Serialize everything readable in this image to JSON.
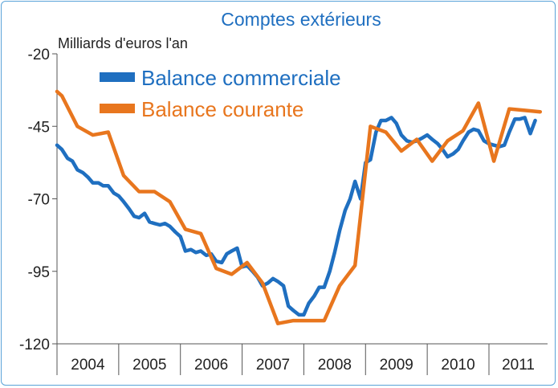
{
  "chart_data": {
    "type": "line",
    "title": "Comptes extérieurs",
    "ylabel": "Milliards d'euros l'an",
    "xlabel": "",
    "ylim": [
      -120,
      -20
    ],
    "yticks": [
      -20,
      -45,
      -70,
      -95,
      -120
    ],
    "xlim": [
      2004.0,
      2011.95
    ],
    "categories": [
      "2004",
      "2005",
      "2006",
      "2007",
      "2008",
      "2009",
      "2010",
      "2011"
    ],
    "grid": false,
    "legend_position": "top-left",
    "colors": {
      "commerciale": "#1f6fc0",
      "courante": "#e8761e",
      "frame": "#5aa3d8",
      "title": "#1f6fc0"
    },
    "series": [
      {
        "name": "Balance commerciale",
        "color": "#1f6fc0",
        "x": [
          2004.0,
          2004.08,
          2004.17,
          2004.25,
          2004.33,
          2004.42,
          2004.5,
          2004.58,
          2004.67,
          2004.75,
          2004.83,
          2004.92,
          2005.0,
          2005.08,
          2005.17,
          2005.25,
          2005.33,
          2005.42,
          2005.5,
          2005.58,
          2005.67,
          2005.75,
          2005.83,
          2005.92,
          2006.0,
          2006.08,
          2006.17,
          2006.25,
          2006.33,
          2006.42,
          2006.5,
          2006.58,
          2006.67,
          2006.75,
          2006.83,
          2006.92,
          2007.0,
          2007.08,
          2007.17,
          2007.25,
          2007.33,
          2007.42,
          2007.5,
          2007.58,
          2007.67,
          2007.75,
          2007.83,
          2007.92,
          2008.0,
          2008.08,
          2008.17,
          2008.25,
          2008.33,
          2008.42,
          2008.5,
          2008.58,
          2008.67,
          2008.75,
          2008.83,
          2008.92,
          2009.0,
          2009.08,
          2009.17,
          2009.25,
          2009.33,
          2009.42,
          2009.5,
          2009.58,
          2009.67,
          2009.75,
          2009.83,
          2009.92,
          2010.0,
          2010.08,
          2010.17,
          2010.25,
          2010.33,
          2010.42,
          2010.5,
          2010.58,
          2010.67,
          2010.75,
          2010.83,
          2010.92,
          2011.0,
          2011.08,
          2011.17,
          2011.25,
          2011.33,
          2011.42,
          2011.5,
          2011.58,
          2011.67,
          2011.75
        ],
        "values": [
          -51.5,
          -53,
          -56,
          -57,
          -60,
          -61,
          -62.5,
          -64.5,
          -64.5,
          -65.5,
          -65.5,
          -68,
          -69,
          -71,
          -73.5,
          -76,
          -76.5,
          -75,
          -78,
          -78.5,
          -79,
          -78.5,
          -79.5,
          -81.5,
          -83,
          -88,
          -87.5,
          -88.5,
          -88,
          -89.5,
          -89,
          -91.5,
          -92,
          -89,
          -88,
          -87,
          -93.5,
          -93,
          -95,
          -97,
          -100,
          -99,
          -97.5,
          -98.5,
          -100,
          -107,
          -108.5,
          -110,
          -110,
          -106,
          -103.5,
          -100.5,
          -100.5,
          -95,
          -88.5,
          -81,
          -74,
          -70,
          -64,
          -70,
          -57.5,
          -56.5,
          -47,
          -43,
          -43,
          -42,
          -44,
          -48,
          -50,
          -50.5,
          -50,
          -49,
          -48,
          -49.5,
          -51,
          -53,
          -55.5,
          -54.5,
          -53,
          -50,
          -47,
          -46,
          -46.5,
          -50,
          -51,
          -51.5,
          -52,
          -51.5,
          -47,
          -42.5,
          -42.5,
          -42,
          -47.5,
          -43
        ]
      },
      {
        "name": "Balance courante",
        "color": "#e8761e",
        "x": [
          2004.0,
          2004.08,
          2004.33,
          2004.58,
          2004.83,
          2005.08,
          2005.33,
          2005.58,
          2005.83,
          2006.08,
          2006.33,
          2006.58,
          2006.83,
          2007.08,
          2007.33,
          2007.58,
          2007.83,
          2008.08,
          2008.33,
          2008.58,
          2008.83,
          2009.08,
          2009.33,
          2009.58,
          2009.83,
          2010.08,
          2010.33,
          2010.58,
          2010.83,
          2011.08,
          2011.33,
          2011.58,
          2011.83
        ],
        "values": [
          -33,
          -34.5,
          -45,
          -48,
          -47,
          -62,
          -67.5,
          -67.5,
          -71,
          -80.5,
          -82,
          -94,
          -96,
          -92,
          -99,
          -113,
          -112,
          -112,
          -112,
          -100,
          -93,
          -45,
          -47,
          -53.5,
          -49.5,
          -57,
          -50,
          -46.5,
          -37,
          -57,
          -39,
          -39.5,
          -40
        ]
      }
    ]
  }
}
